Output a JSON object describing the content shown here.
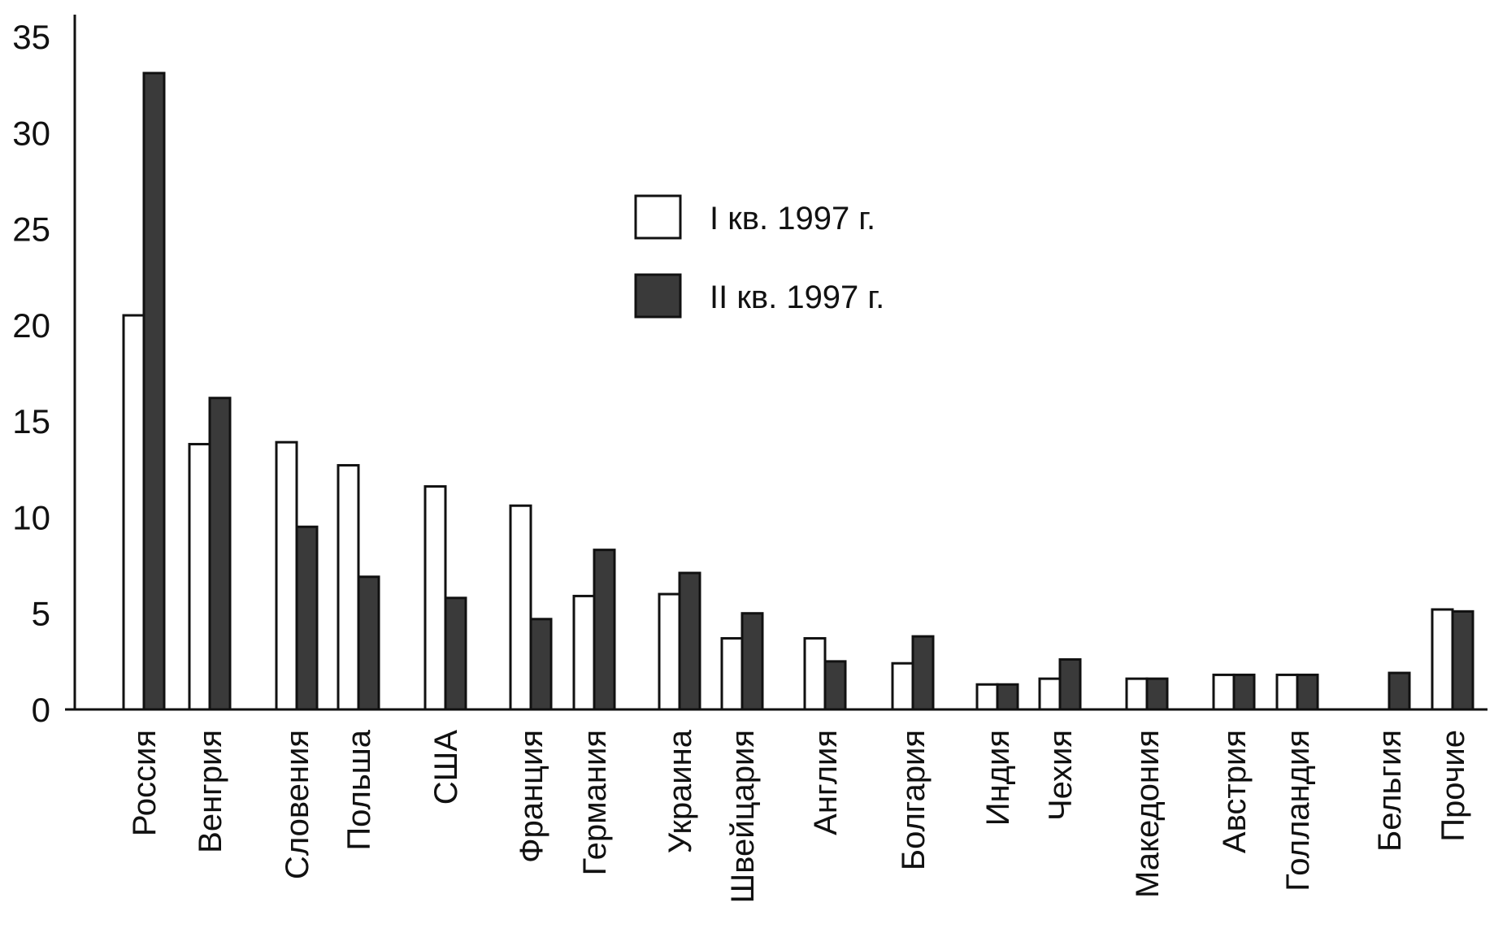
{
  "chart_data": {
    "type": "bar",
    "title": "",
    "xlabel": "",
    "ylabel": "",
    "ylim": [
      0,
      35
    ],
    "yticks": [
      "0",
      "5",
      "10",
      "15",
      "20",
      "25",
      "30",
      "35"
    ],
    "grid": false,
    "legend_position": "top-center",
    "categories": [
      "Россия",
      "Венгрия",
      "Словения",
      "Польша",
      "США",
      "Франция",
      "Германия",
      "Украина",
      "Швейцария",
      "Англия",
      "Болгария",
      "Индия",
      "Чехия",
      "Македония",
      "Австрия",
      "Голландия",
      "Бельгия",
      "Прочие"
    ],
    "series": [
      {
        "name": "I кв. 1997 г.",
        "color": "#ffffff",
        "values": [
          20.5,
          13.8,
          13.9,
          12.7,
          11.6,
          10.6,
          5.9,
          6.0,
          3.7,
          3.7,
          2.4,
          1.3,
          1.6,
          1.6,
          1.8,
          1.8,
          0,
          5.2
        ]
      },
      {
        "name": "II кв. 1997 г.",
        "color": "#3a3a3a",
        "values": [
          33.1,
          16.2,
          9.5,
          6.9,
          5.8,
          4.7,
          8.3,
          7.1,
          5.0,
          2.5,
          3.8,
          1.3,
          2.6,
          1.6,
          1.8,
          1.8,
          1.9,
          5.1
        ]
      }
    ]
  }
}
